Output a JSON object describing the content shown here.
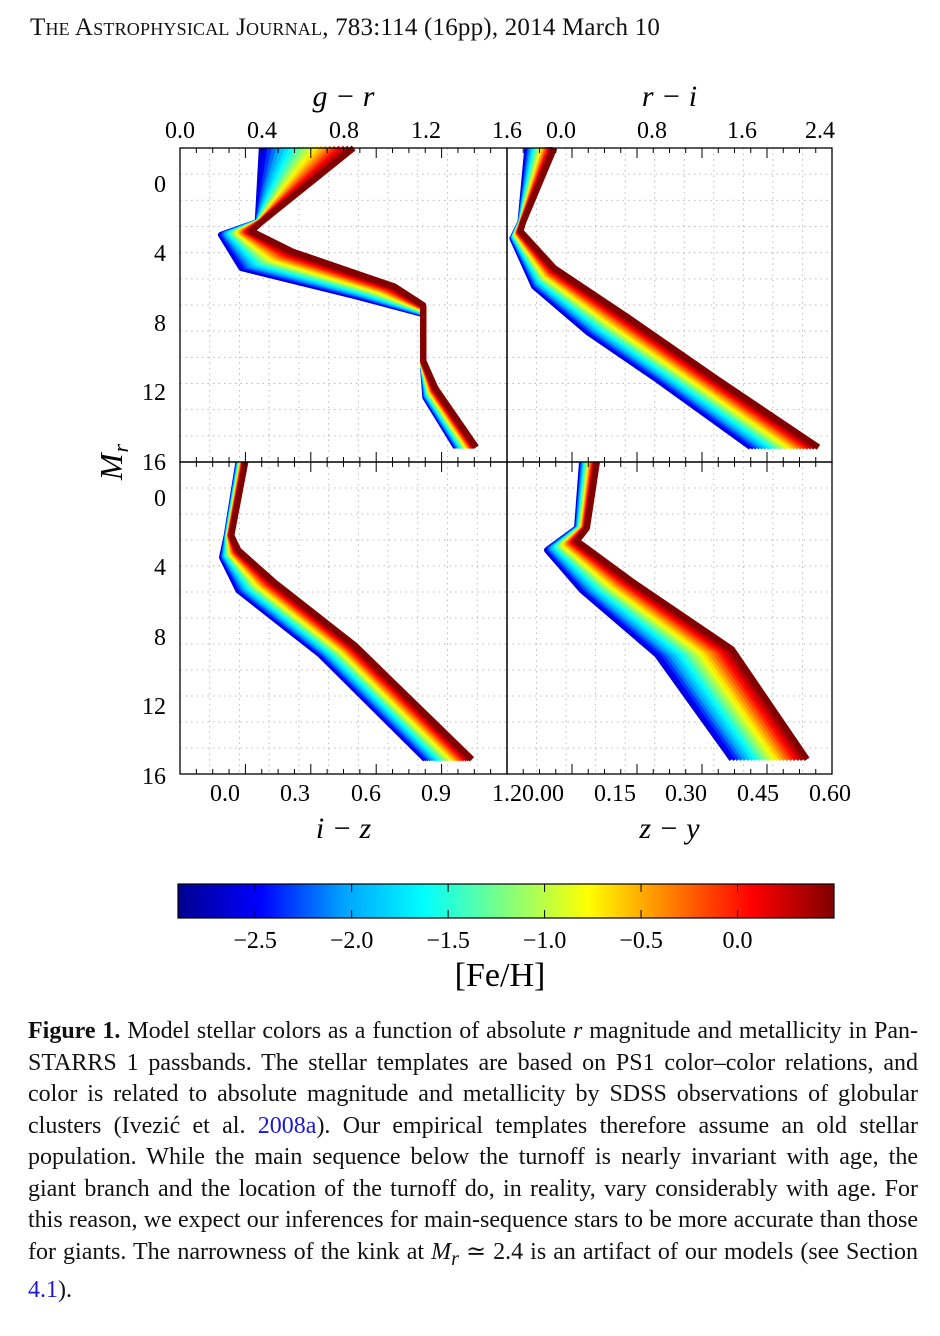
{
  "header": {
    "journal": "The Astrophysical Journal",
    "citation": ", 783:114 (16pp), 2014 March 10"
  },
  "chart_data": [
    {
      "type": "line",
      "panel": "top-left",
      "xlabel": "g − r",
      "ylabel": "M_r",
      "xticks": [
        "0.0",
        "0.4",
        "0.8",
        "1.2",
        "1.6"
      ],
      "yticks": [
        "0",
        "4",
        "8",
        "12",
        "16"
      ],
      "xlim": [
        0.0,
        1.6
      ],
      "ylim": [
        16,
        -1
      ],
      "grid": true,
      "series": [
        {
          "values": [
            {
              "x": 0.4,
              "y": -1
            },
            {
              "x": 0.38,
              "y": 3.0
            },
            {
              "x": 0.2,
              "y": 3.7
            },
            {
              "x": 0.3,
              "y": 5.5
            },
            {
              "x": 0.85,
              "y": 7.0
            },
            {
              "x": 1.19,
              "y": 8.0
            },
            {
              "x": 1.19,
              "y": 11.0
            },
            {
              "x": 1.2,
              "y": 12.5
            },
            {
              "x": 1.35,
              "y": 15.2
            }
          ]
        },
        {
          "values": [
            {
              "x": 0.85,
              "y": -1
            },
            {
              "x": 0.4,
              "y": 3.0
            },
            {
              "x": 0.35,
              "y": 3.5
            },
            {
              "x": 0.55,
              "y": 4.6
            },
            {
              "x": 1.05,
              "y": 6.5
            },
            {
              "x": 1.19,
              "y": 7.5
            },
            {
              "x": 1.19,
              "y": 10.5
            },
            {
              "x": 1.25,
              "y": 12.0
            },
            {
              "x": 1.45,
              "y": 15.2
            }
          ]
        }
      ]
    },
    {
      "type": "line",
      "panel": "top-right",
      "xlabel": "r − i",
      "xticks": [
        "0.0",
        "0.8",
        "1.6",
        "2.4"
      ],
      "xlim": [
        0.0,
        2.4
      ],
      "ylim": [
        16,
        -1
      ],
      "grid": true,
      "series": [
        {
          "values": [
            {
              "x": 0.15,
              "y": -1
            },
            {
              "x": 0.1,
              "y": 3.0
            },
            {
              "x": 0.04,
              "y": 3.9
            },
            {
              "x": 0.2,
              "y": 6.5
            },
            {
              "x": 0.6,
              "y": 9.0
            },
            {
              "x": 1.1,
              "y": 11.5
            },
            {
              "x": 1.8,
              "y": 15.2
            }
          ]
        },
        {
          "values": [
            {
              "x": 0.35,
              "y": -1
            },
            {
              "x": 0.12,
              "y": 3.0
            },
            {
              "x": 0.1,
              "y": 3.5
            },
            {
              "x": 0.35,
              "y": 5.5
            },
            {
              "x": 0.9,
              "y": 8.2
            },
            {
              "x": 1.55,
              "y": 11.5
            },
            {
              "x": 2.3,
              "y": 15.2
            }
          ]
        }
      ]
    },
    {
      "type": "line",
      "panel": "bottom-left",
      "xlabel": "i − z",
      "xticks": [
        "0.0",
        "0.3",
        "0.6",
        "0.9",
        "1.2"
      ],
      "yticks": [
        "0",
        "4",
        "8",
        "12",
        "16"
      ],
      "xlim": [
        -0.2,
        1.2
      ],
      "ylim": [
        16,
        -1
      ],
      "grid": true,
      "series": [
        {
          "values": [
            {
              "x": 0.05,
              "y": -1
            },
            {
              "x": 0.0,
              "y": 3.0
            },
            {
              "x": -0.02,
              "y": 4.2
            },
            {
              "x": 0.05,
              "y": 6.0
            },
            {
              "x": 0.4,
              "y": 9.5
            },
            {
              "x": 0.85,
              "y": 15.2
            }
          ]
        },
        {
          "values": [
            {
              "x": 0.08,
              "y": -1
            },
            {
              "x": 0.02,
              "y": 3.0
            },
            {
              "x": 0.05,
              "y": 3.8
            },
            {
              "x": 0.2,
              "y": 5.5
            },
            {
              "x": 0.55,
              "y": 9.0
            },
            {
              "x": 1.05,
              "y": 15.2
            }
          ]
        }
      ]
    },
    {
      "type": "line",
      "panel": "bottom-right",
      "xlabel": "z − y",
      "xticks": [
        "0.00",
        "0.15",
        "0.30",
        "0.45",
        "0.60"
      ],
      "xlim": [
        0.0,
        0.65
      ],
      "ylim": [
        16,
        -1
      ],
      "grid": true,
      "series": [
        {
          "values": [
            {
              "x": 0.15,
              "y": -1
            },
            {
              "x": 0.14,
              "y": 2.6
            },
            {
              "x": 0.08,
              "y": 3.8
            },
            {
              "x": 0.15,
              "y": 6.0
            },
            {
              "x": 0.3,
              "y": 9.5
            },
            {
              "x": 0.45,
              "y": 15.2
            }
          ]
        },
        {
          "values": [
            {
              "x": 0.18,
              "y": -1
            },
            {
              "x": 0.16,
              "y": 2.6
            },
            {
              "x": 0.14,
              "y": 3.3
            },
            {
              "x": 0.25,
              "y": 5.5
            },
            {
              "x": 0.45,
              "y": 9.2
            },
            {
              "x": 0.6,
              "y": 15.2
            }
          ]
        }
      ]
    }
  ],
  "colorbar": {
    "label": "[Fe/H]",
    "ticks": [
      "−2.5",
      "−2.0",
      "−1.5",
      "−1.0",
      "−0.5",
      "0.0"
    ],
    "tick_values": [
      -2.5,
      -2.0,
      -1.5,
      -1.0,
      -0.5,
      0.0
    ],
    "range": [
      -2.9,
      0.5
    ],
    "colormap": [
      "#00008f",
      "#0000ff",
      "#00a0ff",
      "#00ffff",
      "#80ff80",
      "#ffff00",
      "#ff8000",
      "#ff0000",
      "#800000"
    ]
  },
  "caption": {
    "lead": "Figure 1.",
    "text1": " Model stellar colors as a function of absolute ",
    "r_italic": "r",
    "text2": " magnitude and metallicity in Pan-STARRS 1 passbands. The stellar templates are based on PS1 color–color relations, and color is related to absolute magnitude and metallicity by SDSS observations of globular clusters (Ivezić et al. ",
    "cite_year": "2008a",
    "text3": "). Our empirical templates therefore assume an old stellar population. While the main sequence below the turnoff is nearly invariant with age, the giant branch and the location of the turnoff do, in reality, vary considerably with age. For this reason, we expect our inferences for main-sequence stars to be more accurate than those for giants. The narrowness of the kink at ",
    "mr": "M",
    "mr_sub": "r",
    "text4": " ≃ 2.4 is an artifact of our models (see Section ",
    "section_ref": "4.1",
    "text5": ")."
  }
}
